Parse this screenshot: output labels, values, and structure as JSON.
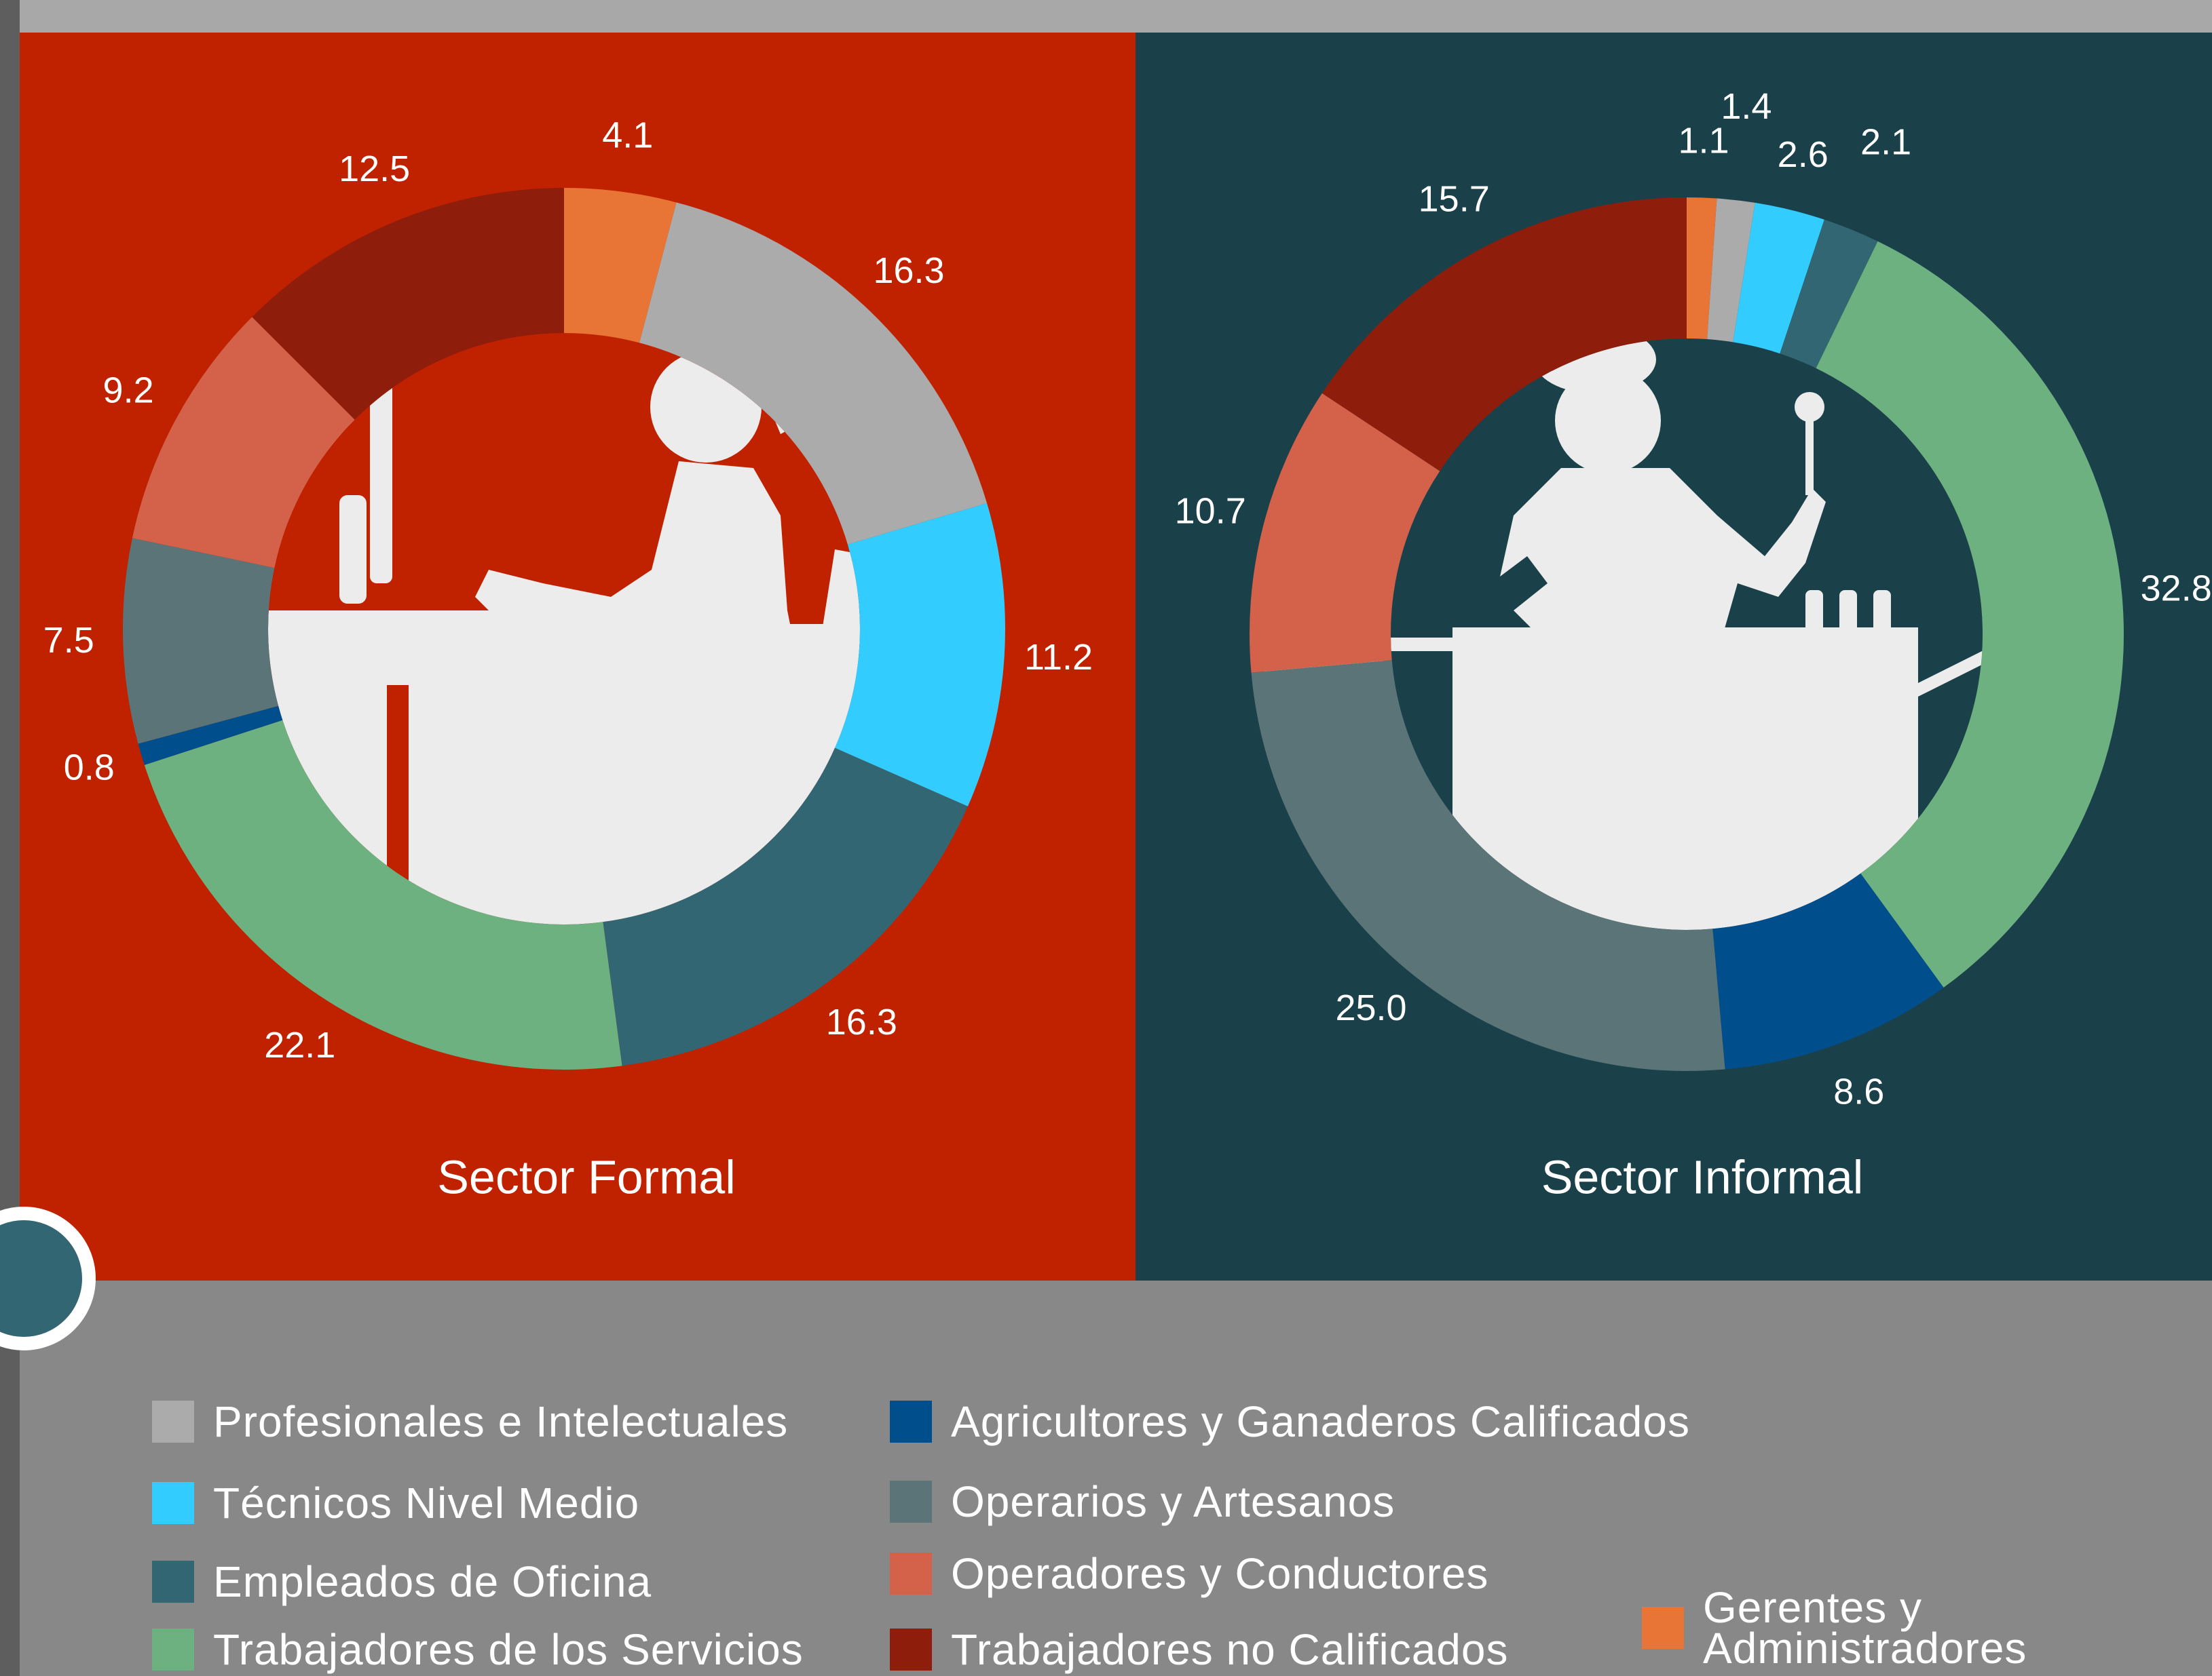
{
  "chart_data": [
    {
      "type": "donut",
      "title": "Sector Formal",
      "categories": [
        "Gerentes y Administradores",
        "Profesionales e Intelectuales",
        "Técnicos Nivel Medio",
        "Empleados de Oficina",
        "Trabajadores de los Servicios",
        "Agricultores y Ganaderos Calificados",
        "Operarios y Artesanos",
        "Operadores y Conductores",
        "Trabajadores no Calificados"
      ],
      "values": [
        4.1,
        16.3,
        11.2,
        16.3,
        22.1,
        0.8,
        7.5,
        9.2,
        12.5
      ],
      "colors": [
        "#e87435",
        "#ababab",
        "#33ccff",
        "#336673",
        "#6cb17f",
        "#004f8c",
        "#5a7478",
        "#d4614a",
        "#8e1d0c"
      ]
    },
    {
      "type": "donut",
      "title": "Sector Informal",
      "categories": [
        "Gerentes y Administradores",
        "Profesionales e Intelectuales",
        "Técnicos Nivel Medio",
        "Empleados de Oficina",
        "Trabajadores de los Servicios",
        "Agricultores y Ganaderos Calificados",
        "Operarios y Artesanos",
        "Operadores y Conductores",
        "Trabajadores no Calificados"
      ],
      "values": [
        1.1,
        1.4,
        2.6,
        2.1,
        32.8,
        8.6,
        25.0,
        10.7,
        15.7
      ],
      "value_labels": [
        "1.1",
        "1.4",
        "2.6",
        "2.1",
        "32.8",
        "8.6",
        "25.0",
        "10.7",
        "15.7"
      ],
      "colors": [
        "#e87435",
        "#ababab",
        "#33ccff",
        "#336673",
        "#6cb17f",
        "#004f8c",
        "#5a7478",
        "#d4614a",
        "#8e1d0c"
      ]
    }
  ]
}
